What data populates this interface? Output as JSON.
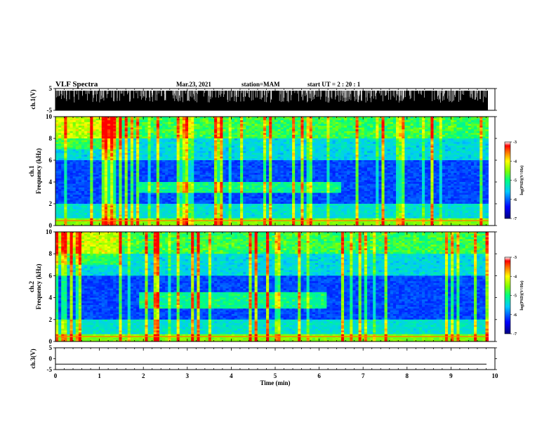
{
  "header": {
    "title": "VLF Spectra",
    "date": "Mar.23, 2021",
    "station": "station=MAM",
    "start": "start  UT =   2 : 20 : 1"
  },
  "colors": {
    "spec_low": "#0000a0",
    "spec_mid": "#00c8ff",
    "spec_hi": "#00ff60",
    "spec_top": "#ff0000",
    "waveform": "#000000"
  },
  "chart_data": [
    {
      "type": "line",
      "panel": "ch1-waveform",
      "ylabel": "ch.1(V)",
      "ylim": [
        -5,
        5
      ],
      "yticks": [
        "5",
        "-5"
      ],
      "xlim": [
        0,
        10
      ],
      "note_fill": "dense black waveform spanning full range"
    },
    {
      "type": "heatmap",
      "panel": "ch1-spectrogram",
      "ylabel_line1": "ch.1",
      "ylabel_line2": "Frequency (kHz)",
      "ylim": [
        0,
        10
      ],
      "yticks": [
        "0",
        "2",
        "4",
        "6",
        "8",
        "10"
      ],
      "xlim": [
        0,
        9.85
      ],
      "band_khz": [
        3,
        4
      ],
      "band_time_min": [
        1.9,
        6.5
      ],
      "colorbar": {
        "label": "log(PSD)(V²/Hz)",
        "range": [
          -7,
          -3
        ],
        "ticks": [
          "-3",
          "-4",
          "-5",
          "-6",
          "-7"
        ]
      }
    },
    {
      "type": "heatmap",
      "panel": "ch2-spectrogram",
      "ylabel_line1": "ch.2",
      "ylabel_line2": "Frequency (kHz)",
      "ylim": [
        0,
        10
      ],
      "yticks": [
        "0",
        "2",
        "4",
        "6",
        "8",
        "10"
      ],
      "xlim": [
        0,
        9.85
      ],
      "band_khz": [
        3,
        4.5
      ],
      "band_time_min": [
        1.9,
        6.2
      ],
      "colorbar": {
        "label": "log(PSD)(V²/Hz)",
        "range": [
          -7,
          -3
        ],
        "ticks": [
          "-3",
          "-4",
          "-5",
          "-6",
          "-7"
        ]
      }
    },
    {
      "type": "line",
      "panel": "ch3-waveform",
      "ylabel": "ch.3(V)",
      "ylim": [
        -5,
        5
      ],
      "yticks": [
        "5",
        "0",
        "-5"
      ],
      "xlim": [
        0,
        10
      ],
      "constant_value": -2.5
    }
  ],
  "x_axis": {
    "label": "Time (min)",
    "ticks": [
      "0",
      "1",
      "2",
      "3",
      "4",
      "5",
      "6",
      "7",
      "8",
      "9",
      "10"
    ]
  }
}
